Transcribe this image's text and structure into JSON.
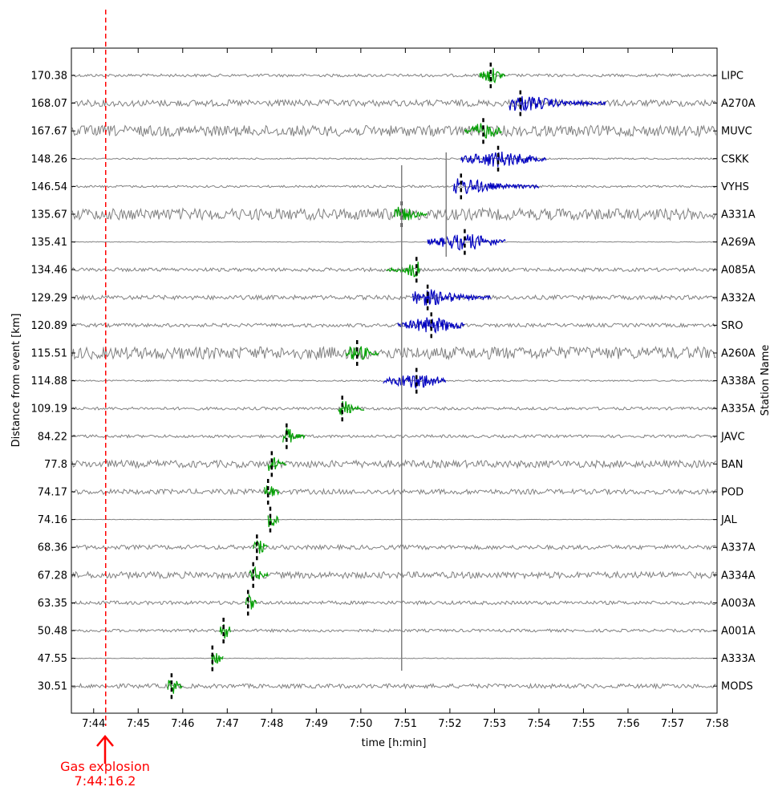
{
  "chart_data": {
    "type": "line",
    "title": "",
    "xlabel": "time [h:min]",
    "ylabel": "Distance from event [km]",
    "y2label": "Station Name",
    "x_ticks": [
      "7:44",
      "7:45",
      "7:46",
      "7:47",
      "7:48",
      "7:49",
      "7:50",
      "7:51",
      "7:52",
      "7:53",
      "7:54",
      "7:55",
      "7:56",
      "7:57",
      "7:58"
    ],
    "x_range_minutes": [
      "7:43:30",
      "7:58:00"
    ],
    "grid": false,
    "colors": {
      "background_trace": "#808080",
      "p_wave": "#00a000",
      "s_wave": "#0000c0",
      "explosion": "#ff0000",
      "pick": "#000000"
    },
    "stations": [
      {
        "name": "LIPC",
        "distance": "170.38",
        "noise": 0.2,
        "arrival": "7:52:40",
        "pick": "7:52:55",
        "phase": "P",
        "arrival_end": "7:53:15"
      },
      {
        "name": "A270A",
        "distance": "168.07",
        "noise": 0.45,
        "arrival": "7:53:20",
        "pick": "7:53:35",
        "phase": "S",
        "arrival_end": "7:55:30"
      },
      {
        "name": "MUVC",
        "distance": "167.67",
        "noise": 0.75,
        "arrival": "7:52:20",
        "pick": "7:52:45",
        "phase": "P",
        "arrival_end": "7:53:10"
      },
      {
        "name": "CSKK",
        "distance": "148.26",
        "noise": 0.1,
        "arrival": "7:52:15",
        "pick": "7:53:05",
        "phase": "S",
        "arrival_end": "7:54:10"
      },
      {
        "name": "VYHS",
        "distance": "146.54",
        "noise": 0.15,
        "arrival": "7:52:05",
        "pick": "7:52:15",
        "phase": "S",
        "arrival_end": "7:54:00"
      },
      {
        "name": "A331A",
        "distance": "135.67",
        "noise": 0.8,
        "arrival": "7:50:45",
        "pick": "7:50:55",
        "phase": "P",
        "arrival_end": "7:51:30"
      },
      {
        "name": "A269A",
        "distance": "135.41",
        "noise": 0.05,
        "arrival": "7:51:30",
        "pick": "7:52:20",
        "phase": "S",
        "arrival_end": "7:53:15"
      },
      {
        "name": "A085A",
        "distance": "134.46",
        "noise": 0.25,
        "arrival": "7:50:35",
        "pick": "7:51:15",
        "phase": "P",
        "arrival_end": "7:51:20"
      },
      {
        "name": "A332A",
        "distance": "129.29",
        "noise": 0.3,
        "arrival": "7:51:10",
        "pick": "7:51:30",
        "phase": "S",
        "arrival_end": "7:52:55"
      },
      {
        "name": "SRO",
        "distance": "120.89",
        "noise": 0.25,
        "arrival": "7:50:50",
        "pick": "7:51:35",
        "phase": "S",
        "arrival_end": "7:52:20"
      },
      {
        "name": "A260A",
        "distance": "115.51",
        "noise": 0.85,
        "arrival": "7:49:40",
        "pick": "7:49:55",
        "phase": "P",
        "arrival_end": "7:50:25"
      },
      {
        "name": "A338A",
        "distance": "114.88",
        "noise": 0.1,
        "arrival": "7:50:30",
        "pick": "7:51:15",
        "phase": "S",
        "arrival_end": "7:51:55"
      },
      {
        "name": "A335A",
        "distance": "109.19",
        "noise": 0.2,
        "arrival": "7:49:30",
        "pick": "7:49:35",
        "phase": "P",
        "arrival_end": "7:50:05"
      },
      {
        "name": "JAVC",
        "distance": "84.22",
        "noise": 0.2,
        "arrival": "7:48:15",
        "pick": "7:48:20",
        "phase": "P",
        "arrival_end": "7:48:45"
      },
      {
        "name": "BAN",
        "distance": "77.8",
        "noise": 0.5,
        "arrival": "7:47:55",
        "pick": "7:48:00",
        "phase": "P",
        "arrival_end": "7:48:20"
      },
      {
        "name": "POD",
        "distance": "74.17",
        "noise": 0.35,
        "arrival": "7:47:50",
        "pick": "7:47:55",
        "phase": "P",
        "arrival_end": "7:48:10"
      },
      {
        "name": "JAL",
        "distance": "74.16",
        "noise": 0.03,
        "arrival": "7:47:55",
        "pick": "7:47:58",
        "phase": "P",
        "arrival_end": "7:48:10"
      },
      {
        "name": "A337A",
        "distance": "68.36",
        "noise": 0.3,
        "arrival": "7:47:35",
        "pick": "7:47:40",
        "phase": "P",
        "arrival_end": "7:47:55"
      },
      {
        "name": "A334A",
        "distance": "67.28",
        "noise": 0.45,
        "arrival": "7:47:30",
        "pick": "7:47:35",
        "phase": "P",
        "arrival_end": "7:47:55"
      },
      {
        "name": "A003A",
        "distance": "63.35",
        "noise": 0.25,
        "arrival": "7:47:25",
        "pick": "7:47:28",
        "phase": "P",
        "arrival_end": "7:47:40"
      },
      {
        "name": "A001A",
        "distance": "50.48",
        "noise": 0.2,
        "arrival": "7:46:50",
        "pick": "7:46:55",
        "phase": "P",
        "arrival_end": "7:47:05"
      },
      {
        "name": "A333A",
        "distance": "47.55",
        "noise": 0.05,
        "arrival": "7:46:38",
        "pick": "7:46:40",
        "phase": "P",
        "arrival_end": "7:46:55"
      },
      {
        "name": "MODS",
        "distance": "30.51",
        "noise": 0.3,
        "arrival": "7:45:40",
        "pick": "7:45:45",
        "phase": "P",
        "arrival_end": "7:46:00"
      }
    ],
    "annotation": {
      "label": "Gas explosion",
      "time": "7:44:16.2"
    }
  }
}
